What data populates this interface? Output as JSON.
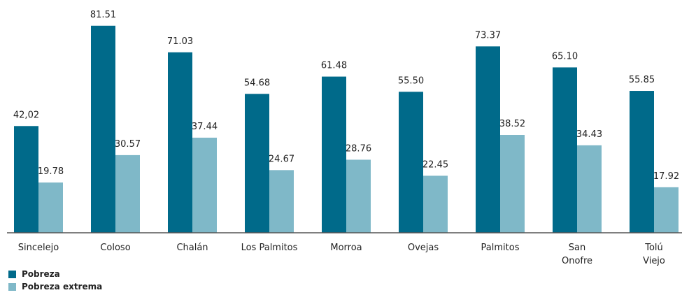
{
  "chart_data": {
    "type": "bar",
    "categories": [
      "Sincelejo",
      "Coloso",
      "Chalán",
      "Los Palmitos",
      "Morroa",
      "Ovejas",
      "Palmitos",
      "San\nOnofre",
      "Tolú\nViejo"
    ],
    "series": [
      {
        "name": "Pobreza",
        "color": "#006a8a",
        "values": [
          42.02,
          81.51,
          71.03,
          54.68,
          61.48,
          55.5,
          73.37,
          65.1,
          55.85
        ],
        "value_labels": [
          "42,02",
          "81.51",
          "71.03",
          "54.68",
          "61.48",
          "55.50",
          "73.37",
          "65.10",
          "55.85"
        ]
      },
      {
        "name": "Pobreza extrema",
        "color": "#7fb8c8",
        "values": [
          19.78,
          30.57,
          37.44,
          24.67,
          28.76,
          22.45,
          38.52,
          34.43,
          17.92
        ],
        "value_labels": [
          "19.78",
          "30.57",
          "37.44",
          "24.67",
          "28.76",
          "22.45",
          "38.52",
          "34.43",
          "17.92"
        ]
      }
    ],
    "ylim": [
      0,
      82
    ]
  }
}
